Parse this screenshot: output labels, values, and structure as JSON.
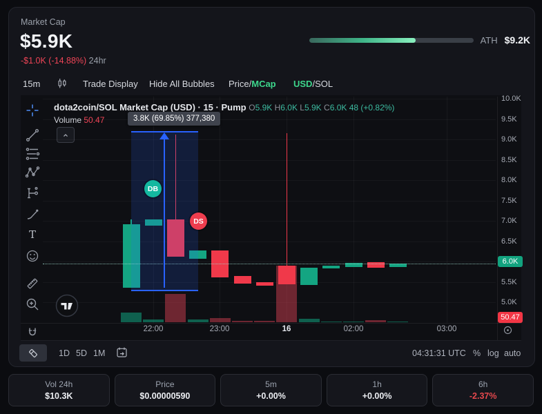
{
  "header": {
    "label": "Market Cap",
    "value": "$5.9K",
    "change": "-$1.0K (-14.88%)",
    "change_period": "24hr",
    "ath_label": "ATH",
    "ath_value": "$9.2K",
    "ath_progress_pct": 65
  },
  "toolbar": {
    "interval": "15m",
    "trade_display": "Trade Display",
    "hide_bubbles": "Hide All Bubbles",
    "price_label": "Price/",
    "mcap_label": "MCap",
    "usd_label": "USD",
    "sol_label": "/SOL"
  },
  "chart": {
    "title": "dota2coin/SOL Market Cap (USD) · 15 · Pump",
    "ohlc": {
      "o_label": "O",
      "o": "5.9K",
      "h_label": "H",
      "h": "6.0K",
      "l_label": "L",
      "l": "5.9K",
      "c_label": "C",
      "c": "6.0K",
      "change": "48 (+0.82%)"
    },
    "volume_label": "Volume",
    "volume_value": "50.47",
    "measure_tooltip": "3.8K (69.85%) 377,380",
    "bubbles": {
      "db": "DB",
      "ds": "DS"
    },
    "clock": "04:31:31 UTC"
  },
  "bottom_toolbar": {
    "ranges": {
      "d1": "1D",
      "d5": "5D",
      "m1": "1M"
    },
    "percent": "%",
    "log": "log",
    "auto": "auto"
  },
  "stats": [
    {
      "label": "Vol 24h",
      "value": "$10.3K"
    },
    {
      "label": "Price",
      "value": "$0.00000590"
    },
    {
      "label": "5m",
      "value": "+0.00%"
    },
    {
      "label": "1h",
      "value": "+0.00%"
    },
    {
      "label": "6h",
      "value": "-2.37%"
    }
  ],
  "colors": {
    "up": "#14a582",
    "down": "#f0394a",
    "vol_up": "rgba(16,150,118,0.6)",
    "vol_down": "rgba(205,62,80,0.5)",
    "measure_blue": "#2962ff",
    "mint": "#3dd68c",
    "price_badge_bg": "#12a37f",
    "volume_badge_bg": "#f23645"
  },
  "chart_data": {
    "type": "candlestick",
    "symbol": "dota2coin/SOL",
    "interval_minutes": 15,
    "y_axis": {
      "ticks": [
        "10.0K",
        "9.5K",
        "9.0K",
        "8.5K",
        "8.0K",
        "7.5K",
        "7.0K",
        "6.5K",
        "6.0K",
        "5.5K",
        "5.0K"
      ],
      "unit": "K USD"
    },
    "x_axis": {
      "ticks": [
        {
          "t": "22:00"
        },
        {
          "t": "23:00"
        },
        {
          "t": "16",
          "bold": true
        },
        {
          "t": "02:00"
        },
        {
          "t": "03:00"
        }
      ]
    },
    "candles": [
      {
        "o": 5.36,
        "h": 7.03,
        "l": 5.36,
        "c": 6.92
      },
      {
        "o": 6.88,
        "h": 7.03,
        "l": 6.88,
        "c": 7.03
      },
      {
        "o": 7.03,
        "h": 9.12,
        "l": 6.12,
        "c": 6.12
      },
      {
        "o": 6.07,
        "h": 6.27,
        "l": 6.07,
        "c": 6.27
      },
      {
        "o": 6.27,
        "h": 6.27,
        "l": 5.61,
        "c": 5.61
      },
      {
        "o": 5.64,
        "h": 5.64,
        "l": 5.46,
        "c": 5.46
      },
      {
        "o": 5.49,
        "h": 5.49,
        "l": 5.41,
        "c": 5.41
      },
      {
        "o": 5.9,
        "h": 9.15,
        "l": 5.44,
        "c": 5.44
      },
      {
        "o": 5.42,
        "h": 5.85,
        "l": 5.42,
        "c": 5.85
      },
      {
        "o": 5.83,
        "h": 5.9,
        "l": 5.83,
        "c": 5.9
      },
      {
        "o": 5.86,
        "h": 5.97,
        "l": 5.86,
        "c": 5.97
      },
      {
        "o": 5.98,
        "h": 5.98,
        "l": 5.85,
        "c": 5.85
      },
      {
        "o": 5.86,
        "h": 5.95,
        "l": 5.86,
        "c": 5.95
      }
    ],
    "volume_relative": [
      14,
      4,
      41,
      4,
      6,
      2,
      2,
      82,
      5,
      1,
      1,
      3,
      1
    ],
    "last_price_badge": "6.0K",
    "last_volume_badge": "50.47",
    "measure": {
      "from_k": 5.45,
      "to_k": 9.25,
      "label": "3.8K (69.85%) 377,380"
    }
  }
}
